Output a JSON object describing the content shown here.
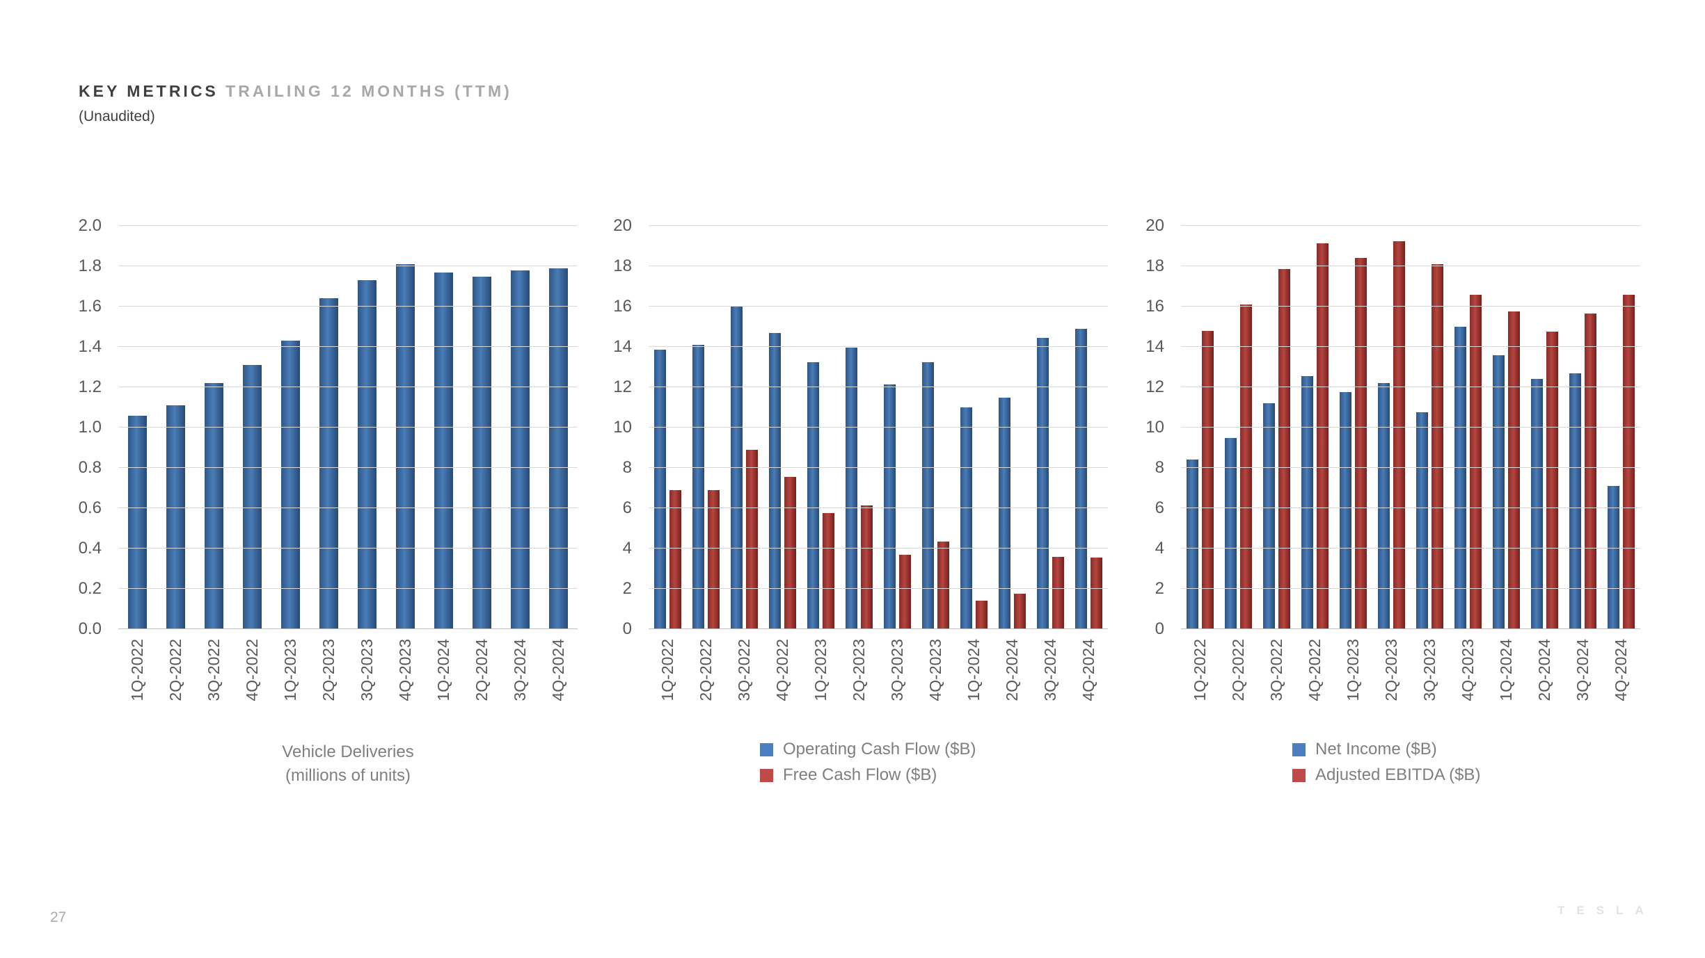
{
  "page": {
    "title_primary": "KEY METRICS",
    "title_secondary": "TRAILING 12 MONTHS (TTM)",
    "subtitle": "(Unaudited)",
    "page_number": "27",
    "brand": "TESLA"
  },
  "colors": {
    "bar_blue": "#3f6fa8",
    "bar_red": "#a03734",
    "legend_swatch_blue": "#4d7ebf",
    "legend_swatch_red": "#bf4a47",
    "gridline": "#d9d9d9",
    "tick_text": "#595959",
    "caption_text": "#7f7f7f",
    "title_primary_text": "#3f3f3f",
    "title_secondary_text": "#a8a8a8"
  },
  "chart_data": [
    {
      "type": "bar",
      "title": "Vehicle Deliveries (millions of units)",
      "caption_line1": "Vehicle Deliveries",
      "caption_line2": "(millions of units)",
      "categories": [
        "1Q-2022",
        "2Q-2022",
        "3Q-2022",
        "4Q-2022",
        "1Q-2023",
        "2Q-2023",
        "3Q-2023",
        "4Q-2023",
        "1Q-2024",
        "2Q-2024",
        "3Q-2024",
        "4Q-2024"
      ],
      "yticks": [
        "2.0",
        "1.8",
        "1.6",
        "1.4",
        "1.2",
        "1.0",
        "0.8",
        "0.6",
        "0.4",
        "0.2",
        "0.0"
      ],
      "ylim": [
        0,
        2.0
      ],
      "grid": true,
      "legend_position": "none",
      "series": [
        {
          "name": "Vehicle Deliveries (millions of units)",
          "class": "s-blue",
          "values": [
            1.06,
            1.11,
            1.22,
            1.31,
            1.43,
            1.64,
            1.73,
            1.81,
            1.77,
            1.75,
            1.78,
            1.79
          ]
        }
      ]
    },
    {
      "type": "bar",
      "title": "Operating Cash Flow vs Free Cash Flow",
      "categories": [
        "1Q-2022",
        "2Q-2022",
        "3Q-2022",
        "4Q-2022",
        "1Q-2023",
        "2Q-2023",
        "3Q-2023",
        "4Q-2023",
        "1Q-2024",
        "2Q-2024",
        "3Q-2024",
        "4Q-2024"
      ],
      "yticks": [
        "20",
        "18",
        "16",
        "14",
        "12",
        "10",
        "8",
        "6",
        "4",
        "2",
        "0"
      ],
      "ylim": [
        0,
        20
      ],
      "grid": true,
      "legend_position": "bottom",
      "series": [
        {
          "name": "Operating Cash Flow ($B)",
          "class": "s-blue",
          "values": [
            13.85,
            14.1,
            16.0,
            14.7,
            13.25,
            13.95,
            12.15,
            13.25,
            11.0,
            11.5,
            14.45,
            14.9
          ]
        },
        {
          "name": "Free Cash Flow ($B)",
          "class": "s-red",
          "values": [
            6.9,
            6.9,
            8.9,
            7.55,
            5.75,
            6.15,
            3.7,
            4.35,
            1.4,
            1.75,
            3.6,
            3.55
          ]
        }
      ]
    },
    {
      "type": "bar",
      "title": "Net Income vs Adjusted EBITDA",
      "categories": [
        "1Q-2022",
        "2Q-2022",
        "3Q-2022",
        "4Q-2022",
        "1Q-2023",
        "2Q-2023",
        "3Q-2023",
        "4Q-2023",
        "1Q-2024",
        "2Q-2024",
        "3Q-2024",
        "4Q-2024"
      ],
      "yticks": [
        "20",
        "18",
        "16",
        "14",
        "12",
        "10",
        "8",
        "6",
        "4",
        "2",
        "0"
      ],
      "ylim": [
        0,
        20
      ],
      "grid": true,
      "legend_position": "bottom",
      "series": [
        {
          "name": "Net Income ($B)",
          "class": "s-blue",
          "values": [
            8.4,
            9.5,
            11.2,
            12.55,
            11.75,
            12.2,
            10.75,
            15.0,
            13.6,
            12.4,
            12.7,
            7.1
          ]
        },
        {
          "name": "Adjusted EBITDA ($B)",
          "class": "s-red",
          "values": [
            14.8,
            16.1,
            17.85,
            19.15,
            18.4,
            19.25,
            18.1,
            16.6,
            15.75,
            14.75,
            15.65,
            16.6
          ]
        }
      ]
    }
  ]
}
